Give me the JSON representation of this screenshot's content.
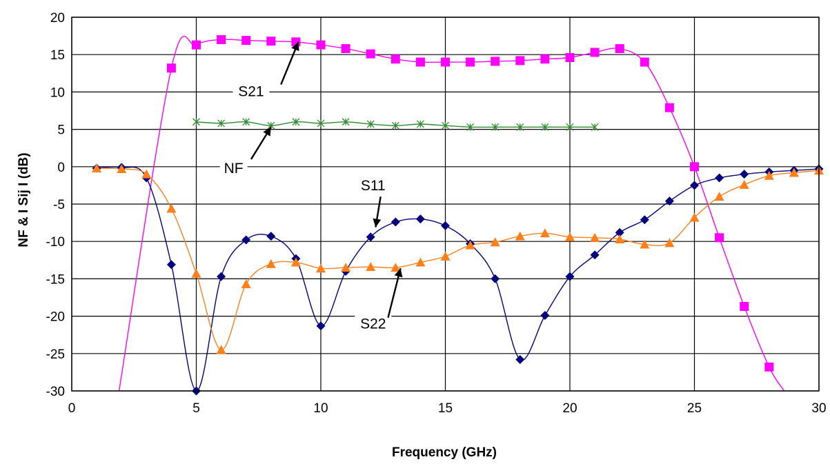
{
  "chart_data": {
    "type": "line",
    "title": "",
    "xlabel": "Frequency (GHz)",
    "ylabel": "NF & I Sij I (dB)",
    "xlim": [
      0,
      30
    ],
    "ylim": [
      -30,
      20
    ],
    "xticks": [
      0,
      5,
      10,
      15,
      20,
      25,
      30
    ],
    "yticks": [
      20,
      15,
      10,
      5,
      0,
      -5,
      -10,
      -15,
      -20,
      -25,
      -30
    ],
    "grid": true,
    "legend": "none",
    "series": [
      {
        "name": "S21",
        "color": "#ff00ff",
        "marker": "square",
        "x": [
          4,
          5,
          6,
          7,
          8,
          9,
          10,
          11,
          12,
          13,
          14,
          15,
          16,
          17,
          18,
          19,
          20,
          21,
          22,
          23,
          24,
          25,
          26,
          27,
          28
        ],
        "y": [
          13.2,
          16.3,
          17.0,
          16.9,
          16.8,
          16.7,
          16.3,
          15.8,
          15.1,
          14.4,
          14.0,
          14.0,
          14.0,
          14.1,
          14.2,
          14.4,
          14.6,
          15.3,
          15.8,
          14.0,
          7.9,
          0.0,
          -9.5,
          -18.7,
          -26.8
        ],
        "curve_extent": [
          [
            1.9,
            -30
          ],
          [
            28.6,
            -30
          ]
        ]
      },
      {
        "name": "NF",
        "color": "#2e8b2e",
        "marker": "x",
        "x": [
          5,
          6,
          7,
          8,
          9,
          10,
          11,
          12,
          13,
          14,
          15,
          16,
          17,
          18,
          19,
          20,
          21
        ],
        "y": [
          6.0,
          5.8,
          6.0,
          5.5,
          6.0,
          5.8,
          6.0,
          5.7,
          5.5,
          5.7,
          5.5,
          5.3,
          5.3,
          5.3,
          5.3,
          5.3,
          5.3
        ]
      },
      {
        "name": "S11",
        "color": "#00007f",
        "marker": "diamond",
        "x": [
          1,
          2,
          3,
          4,
          5,
          6,
          7,
          8,
          9,
          10,
          11,
          12,
          13,
          14,
          15,
          16,
          17,
          18,
          19,
          20,
          21,
          22,
          23,
          24,
          25,
          26,
          27,
          28,
          29,
          30
        ],
        "y": [
          -0.2,
          -0.1,
          -1.5,
          -13.1,
          -30.0,
          -14.7,
          -9.8,
          -9.3,
          -12.3,
          -21.3,
          -14.0,
          -9.4,
          -7.4,
          -7.0,
          -7.9,
          -10.3,
          -15.0,
          -25.8,
          -19.9,
          -14.7,
          -11.8,
          -8.8,
          -7.1,
          -4.6,
          -2.5,
          -1.5,
          -1.0,
          -0.7,
          -0.5,
          -0.3
        ]
      },
      {
        "name": "S22",
        "color": "#ff7f1a",
        "marker": "triangle",
        "x": [
          1,
          2,
          3,
          4,
          5,
          6,
          7,
          8,
          9,
          10,
          11,
          12,
          13,
          14,
          15,
          16,
          17,
          18,
          19,
          20,
          21,
          22,
          23,
          24,
          25,
          26,
          27,
          28,
          29,
          30
        ],
        "y": [
          -0.2,
          -0.3,
          -1.0,
          -5.6,
          -14.3,
          -24.5,
          -15.7,
          -13.0,
          -12.8,
          -13.6,
          -13.5,
          -13.4,
          -13.5,
          -12.8,
          -12.0,
          -10.5,
          -10.1,
          -9.3,
          -8.9,
          -9.4,
          -9.5,
          -9.7,
          -10.4,
          -10.2,
          -6.8,
          -4.0,
          -2.4,
          -1.2,
          -0.8,
          -0.5
        ]
      }
    ],
    "annotations": [
      {
        "text": "S21",
        "label_xy": [
          7.2,
          9.8
        ],
        "arrow_from": [
          8.4,
          11.0
        ],
        "arrow_to": [
          9.1,
          16.7
        ]
      },
      {
        "text": "NF",
        "label_xy": [
          6.5,
          -0.5
        ],
        "arrow_from": [
          7.2,
          1.0
        ],
        "arrow_to": [
          8.0,
          5.3
        ]
      },
      {
        "text": "S11",
        "label_xy": [
          12.1,
          -2.8
        ],
        "arrow_from": [
          12.4,
          -4.0
        ],
        "arrow_to": [
          12.2,
          -8.1
        ]
      },
      {
        "text": "S22",
        "label_xy": [
          12.1,
          -21.3
        ],
        "arrow_from": [
          12.7,
          -20.2
        ],
        "arrow_to": [
          13.2,
          -13.6
        ]
      }
    ]
  }
}
